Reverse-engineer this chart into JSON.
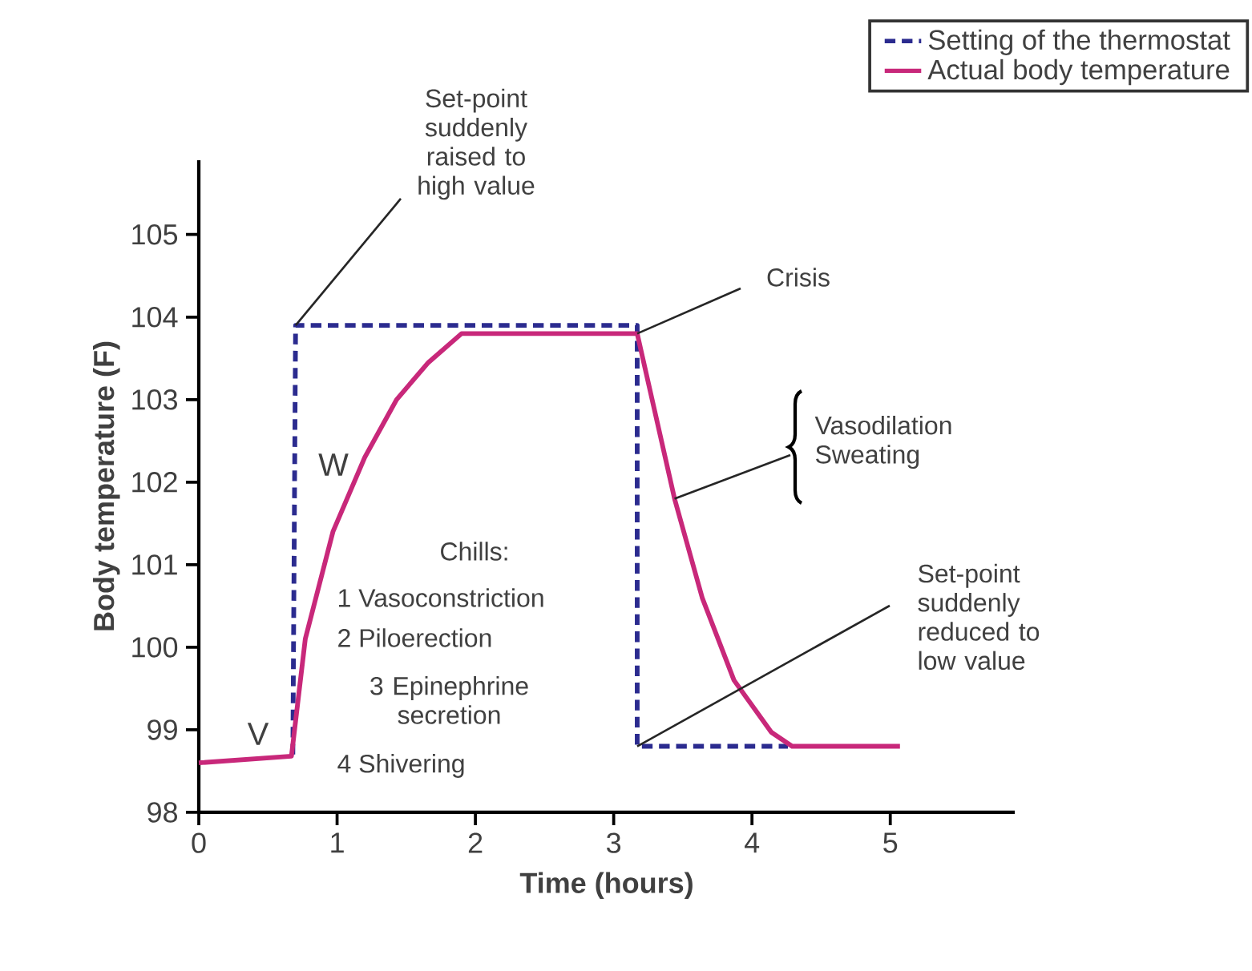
{
  "chart_data": {
    "type": "line",
    "xlabel": "Time (hours)",
    "ylabel": "Body temperature (F)",
    "xlim": [
      0,
      5.9
    ],
    "ylim": [
      98,
      105.9
    ],
    "xticks": [
      0,
      1,
      2,
      3,
      4,
      5
    ],
    "yticks": [
      98,
      99,
      100,
      101,
      102,
      103,
      104,
      105
    ],
    "grid": false,
    "legend": "top right",
    "marker": "none",
    "series": [
      {
        "name": "Setting of the thermostat",
        "color": "#2b2b8f",
        "line_style": "dashed",
        "x": [
          0.68,
          0.7,
          3.17,
          3.17,
          4.26
        ],
        "values": [
          98.7,
          103.9,
          103.9,
          98.8,
          98.8
        ]
      },
      {
        "name": "Actual body temperature",
        "color": "#c8287a",
        "line_style": "solid",
        "x": [
          0,
          0.67,
          0.77,
          0.97,
          1.2,
          1.43,
          1.66,
          1.9,
          3.17,
          3.44,
          3.64,
          3.87,
          4.14,
          4.29,
          5.07
        ],
        "values": [
          98.6,
          98.68,
          100.1,
          101.4,
          102.3,
          103.0,
          103.45,
          103.8,
          103.8,
          101.8,
          100.6,
          99.6,
          98.97,
          98.8,
          98.8
        ]
      }
    ],
    "annotations": [
      {
        "text": "Set-point suddenly raised to high value",
        "x": 0.7,
        "y": 103.9
      },
      {
        "text": "Crisis",
        "x": 3.17,
        "y": 103.8
      },
      {
        "text": "Vasodilation Sweating",
        "x": 3.44,
        "y": 101.8
      },
      {
        "text": "Set-point suddenly reduced to low value",
        "x": 3.17,
        "y": 98.8
      },
      "V",
      "W",
      "Chills:",
      "1 Vasoconstriction",
      "2 Piloerection",
      "3 Epinephrine secretion",
      "4 Shivering"
    ]
  }
}
